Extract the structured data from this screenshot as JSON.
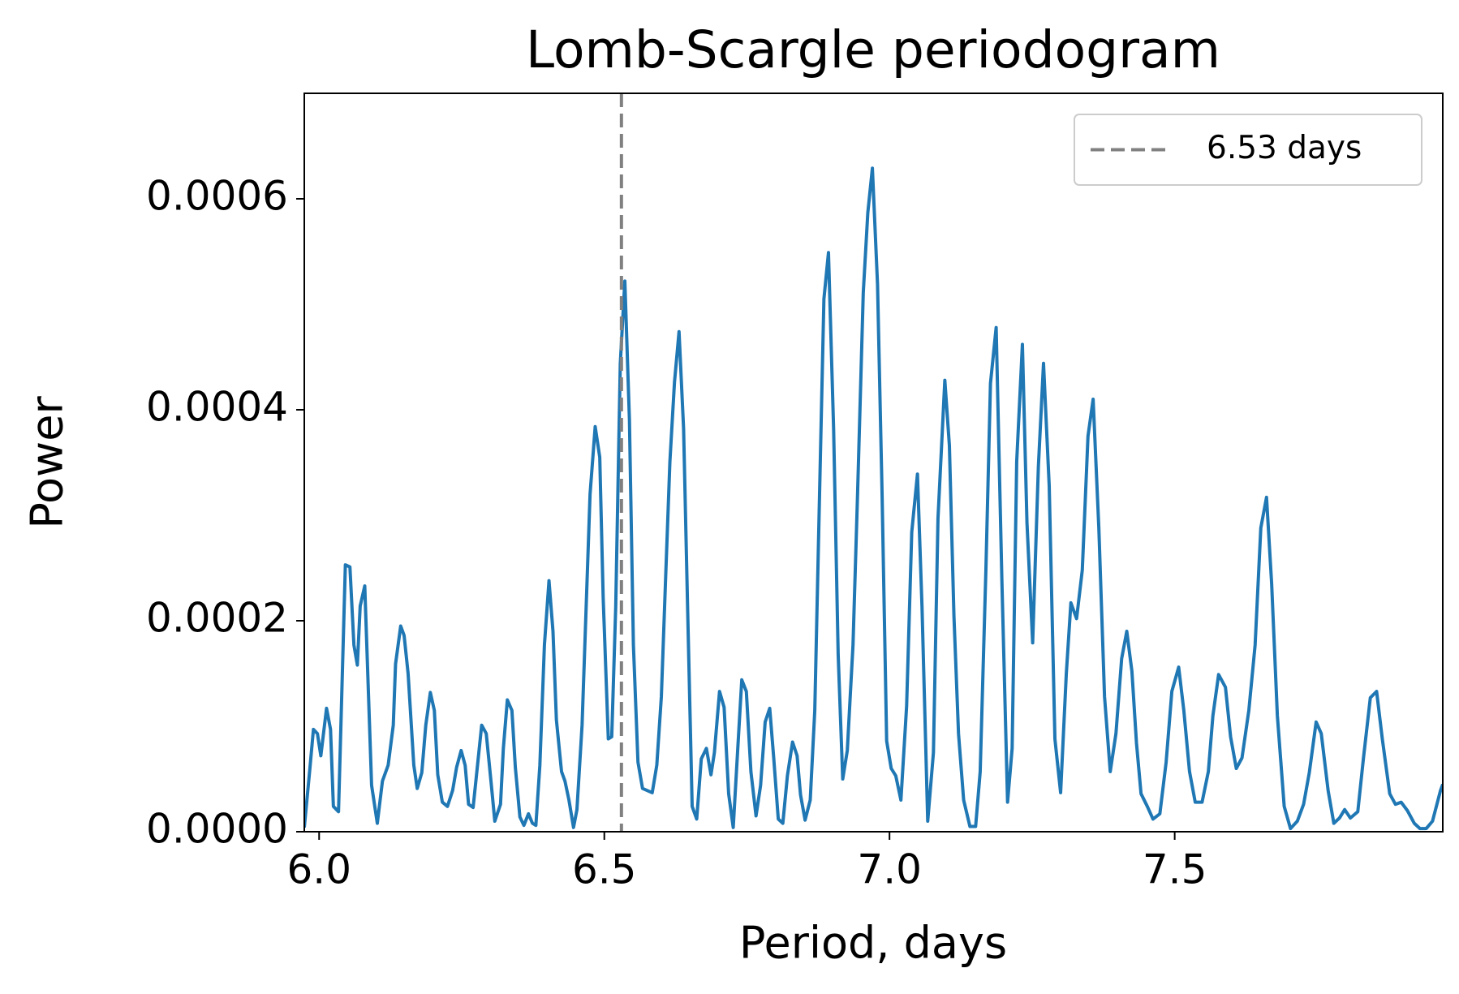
{
  "chart_data": {
    "type": "line",
    "title": "Lomb-Scargle periodogram",
    "xlabel": "Period, days",
    "ylabel": "Power",
    "xlim": [
      5.974,
      7.97
    ],
    "ylim": [
      0,
      0.0007
    ],
    "xticks": [
      {
        "value": 6,
        "label": "6.0"
      },
      {
        "value": 6.5,
        "label": "6.5"
      },
      {
        "value": 7,
        "label": "7.0"
      },
      {
        "value": 7.5,
        "label": "7.5"
      }
    ],
    "yticks": [
      {
        "value": 0,
        "label": "0.0000"
      },
      {
        "value": 0.0002,
        "label": "0.0002"
      },
      {
        "value": 0.0004,
        "label": "0.0004"
      },
      {
        "value": 0.0006,
        "label": "0.0006"
      }
    ],
    "grid": false,
    "legend": "upper right",
    "vline": {
      "x": 6.53,
      "label": "6.53 days",
      "color": "#808080"
    },
    "x": [
      5.974,
      5.984,
      5.99,
      5.997,
      6.003,
      6.013,
      6.02,
      6.025,
      6.034,
      6.046,
      6.054,
      6.061,
      6.067,
      6.072,
      6.08,
      6.092,
      6.102,
      6.111,
      6.121,
      6.13,
      6.134,
      6.143,
      6.149,
      6.156,
      6.166,
      6.172,
      6.18,
      6.187,
      6.195,
      6.202,
      6.208,
      6.216,
      6.225,
      6.234,
      6.241,
      6.249,
      6.256,
      6.262,
      6.27,
      6.285,
      6.293,
      6.302,
      6.308,
      6.318,
      6.323,
      6.33,
      6.338,
      6.344,
      6.352,
      6.359,
      6.367,
      6.374,
      6.38,
      6.387,
      6.395,
      6.403,
      6.41,
      6.416,
      6.425,
      6.431,
      6.438,
      6.446,
      6.452,
      6.461,
      6.475,
      6.484,
      6.492,
      6.498,
      6.507,
      6.513,
      6.52,
      6.528,
      6.536,
      6.544,
      6.551,
      6.559,
      6.567,
      6.584,
      6.592,
      6.6,
      6.608,
      6.615,
      6.623,
      6.631,
      6.639,
      6.646,
      6.654,
      6.662,
      6.67,
      6.679,
      6.687,
      6.693,
      6.702,
      6.71,
      6.718,
      6.726,
      6.734,
      6.741,
      6.749,
      6.757,
      6.766,
      6.774,
      6.782,
      6.79,
      6.797,
      6.805,
      6.813,
      6.821,
      6.83,
      6.838,
      6.844,
      6.852,
      6.861,
      6.869,
      6.877,
      6.885,
      6.893,
      6.902,
      6.91,
      6.918,
      6.926,
      6.936,
      6.944,
      6.954,
      6.962,
      6.97,
      6.979,
      6.987,
      6.995,
      7.003,
      7.011,
      7.02,
      7.03,
      7.039,
      7.049,
      7.057,
      7.067,
      7.077,
      7.085,
      7.097,
      7.105,
      7.113,
      7.121,
      7.13,
      7.141,
      7.151,
      7.159,
      7.169,
      7.177,
      7.187,
      7.197,
      7.207,
      7.215,
      7.223,
      7.233,
      7.241,
      7.251,
      7.261,
      7.27,
      7.28,
      7.29,
      7.3,
      7.31,
      7.318,
      7.328,
      7.338,
      7.348,
      7.357,
      7.367,
      7.377,
      7.387,
      7.397,
      7.407,
      7.416,
      7.425,
      7.433,
      7.441,
      7.452,
      7.462,
      7.474,
      7.485,
      7.495,
      7.507,
      7.516,
      7.526,
      7.536,
      7.548,
      7.559,
      7.567,
      7.577,
      7.589,
      7.598,
      7.608,
      7.618,
      7.63,
      7.641,
      7.651,
      7.661,
      7.67,
      7.68,
      7.692,
      7.703,
      7.715,
      7.726,
      7.736,
      7.748,
      7.757,
      7.769,
      7.779,
      7.789,
      7.798,
      7.808,
      7.821,
      7.831,
      7.843,
      7.854,
      7.864,
      7.877,
      7.887,
      7.897,
      7.908,
      7.92,
      7.93,
      7.941,
      7.952,
      7.966,
      7.97
    ],
    "series": [
      {
        "color": "#1f77b4",
        "values": [
          4e-06,
          6.1e-05,
          9.7e-05,
          9.3e-05,
          7.2e-05,
          0.000117,
          9.7e-05,
          2.4e-05,
          1.9e-05,
          0.000253,
          0.000251,
          0.000177,
          0.000158,
          0.000214,
          0.000233,
          4.4e-05,
          8e-06,
          4.8e-05,
          6.3e-05,
          0.000101,
          0.000159,
          0.000195,
          0.000186,
          0.00015,
          6.3e-05,
          4.1e-05,
          5.6e-05,
          0.000101,
          0.000132,
          0.000115,
          5.4e-05,
          2.8e-05,
          2.4e-05,
          3.9e-05,
          6.1e-05,
          7.7e-05,
          6.3e-05,
          2.6e-05,
          2.3e-05,
          0.000101,
          9.3e-05,
          4.4e-05,
          1e-05,
          2.6e-05,
          7.9e-05,
          0.000125,
          0.000115,
          6.1e-05,
          1.4e-05,
          6e-06,
          1.7e-05,
          8e-06,
          6e-06,
          6.3e-05,
          0.000177,
          0.000238,
          0.00019,
          0.000106,
          5.7e-05,
          4.8e-05,
          3e-05,
          4e-06,
          2.1e-05,
          0.000101,
          0.00032,
          0.000384,
          0.000355,
          0.000222,
          8.8e-05,
          9e-05,
          0.000213,
          0.000444,
          0.000522,
          0.000391,
          0.000177,
          6.6e-05,
          4.1e-05,
          3.7e-05,
          6.3e-05,
          0.000128,
          0.000248,
          0.000351,
          0.000426,
          0.000474,
          0.000382,
          0.000213,
          2.4e-05,
          1.2e-05,
          6.9e-05,
          7.9e-05,
          5.4e-05,
          7.5e-05,
          0.000133,
          0.000118,
          3.6e-05,
          4e-06,
          7.9e-05,
          0.000144,
          0.000133,
          5.7e-05,
          1.5e-05,
          4.4e-05,
          0.000104,
          0.000117,
          7e-05,
          1.2e-05,
          8e-06,
          5.3e-05,
          8.5e-05,
          7.2e-05,
          3.5e-05,
          1.1e-05,
          3e-05,
          0.000115,
          0.000311,
          0.000505,
          0.000549,
          0.000382,
          0.000168,
          5e-05,
          7.7e-05,
          0.000177,
          0.00032,
          0.000511,
          0.000587,
          0.000629,
          0.000519,
          0.00032,
          8.6e-05,
          6e-05,
          5.3e-05,
          3e-05,
          0.000119,
          0.000284,
          0.000339,
          0.000213,
          1e-05,
          7.5e-05,
          0.000297,
          0.000428,
          0.000366,
          0.000204,
          9.3e-05,
          3e-05,
          5e-06,
          5e-06,
          5.7e-05,
          0.000248,
          0.000425,
          0.000478,
          0.000239,
          2.8e-05,
          7.9e-05,
          0.000351,
          0.000462,
          0.000293,
          0.000179,
          0.000346,
          0.000444,
          0.000328,
          8.8e-05,
          3.7e-05,
          0.00015,
          0.000217,
          0.000202,
          0.000248,
          0.000375,
          0.00041,
          0.000288,
          0.000128,
          5.7e-05,
          9.3e-05,
          0.000164,
          0.00019,
          0.000152,
          8.4e-05,
          3.6e-05,
          2.4e-05,
          1.2e-05,
          1.7e-05,
          6.6e-05,
          0.000133,
          0.000156,
          0.000115,
          5.7e-05,
          2.8e-05,
          2.8e-05,
          5.7e-05,
          0.00011,
          0.000149,
          0.000137,
          9e-05,
          6e-05,
          7e-05,
          0.000115,
          0.000177,
          0.000288,
          0.000317,
          0.000235,
          0.00011,
          2.4e-05,
          3e-06,
          1e-05,
          2.6e-05,
          5.6e-05,
          0.000104,
          9.3e-05,
          3.9e-05,
          8e-06,
          1.3e-05,
          2.1e-05,
          1.3e-05,
          1.9e-05,
          7e-05,
          0.000127,
          0.000133,
          8.8e-05,
          3.6e-05,
          2.6e-05,
          2.8e-05,
          2e-05,
          8e-06,
          3e-06,
          3e-06,
          1e-05,
          3.9e-05,
          4.5e-05
        ]
      }
    ]
  }
}
